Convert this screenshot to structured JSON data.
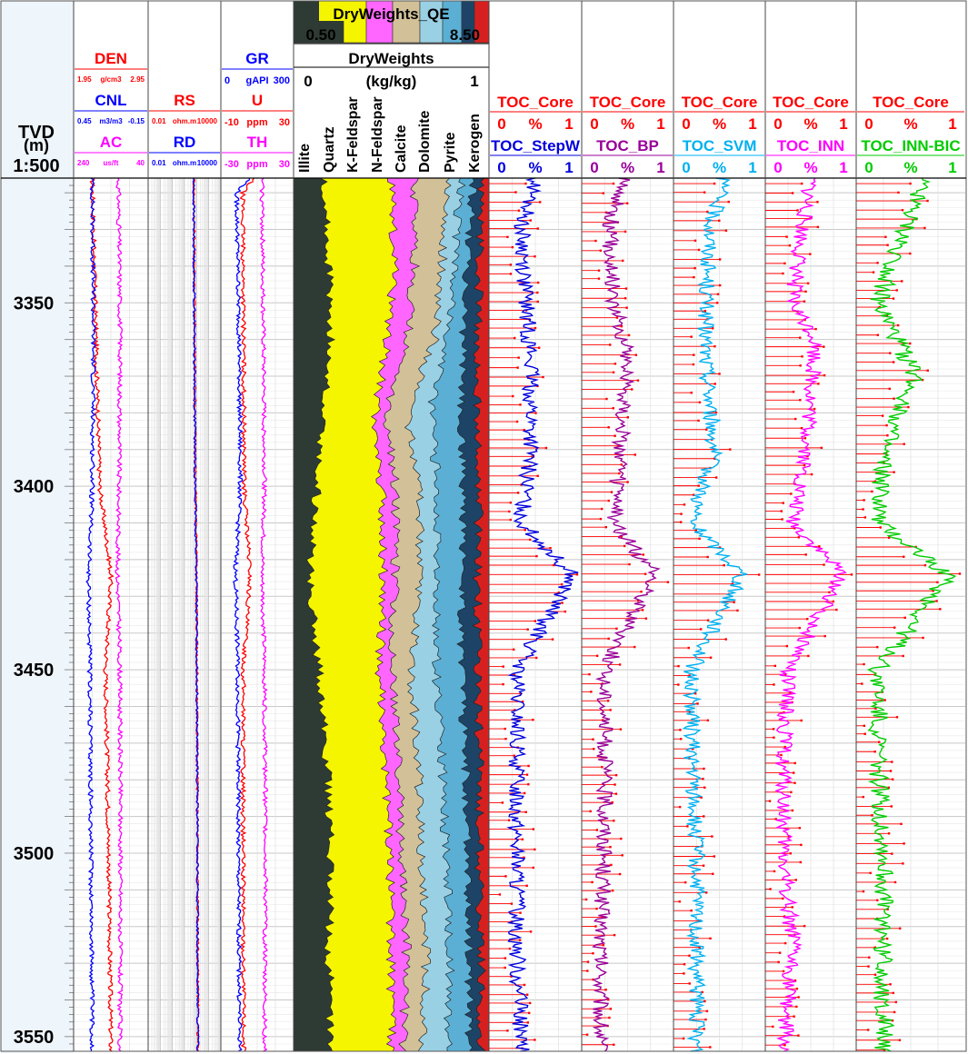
{
  "chart_data": {
    "type": "line",
    "depth": {
      "header": [
        "TVD",
        "(m)",
        "1:500"
      ],
      "ticks": [
        3350,
        3400,
        3450,
        3500,
        3550
      ],
      "range": [
        3316,
        3554
      ]
    },
    "tracks": [
      {
        "id": "t1",
        "headers": [
          {
            "name": "DEN",
            "unit": "g/cm3",
            "min": "1.95",
            "max": "2.95",
            "color": "#ff0000"
          },
          {
            "name": "CNL",
            "unit": "m3/m3",
            "min": "0.45",
            "max": "-0.15",
            "color": "#0000ff"
          },
          {
            "name": "AC",
            "unit": "us/ft",
            "min": "240",
            "max": "40",
            "color": "#ff00ff"
          }
        ],
        "curves": [
          {
            "name": "DEN",
            "color": "#ff0000",
            "range": [
              1.95,
              2.95
            ],
            "d": [
              3316,
              3360,
              3400,
              3424,
              3450,
              3500,
              3554
            ],
            "v": [
              2.2,
              2.25,
              2.3,
              2.45,
              2.38,
              2.42,
              2.45
            ]
          },
          {
            "name": "CNL",
            "color": "#0000ff",
            "range": [
              0.45,
              -0.15
            ],
            "d": [
              3316,
              3360,
              3400,
              3424,
              3450,
              3500,
              3554
            ],
            "v": [
              0.3,
              0.29,
              0.3,
              0.33,
              0.32,
              0.31,
              0.3
            ]
          },
          {
            "name": "AC",
            "color": "#ff00ff",
            "range": [
              240,
              40
            ],
            "d": [
              3316,
              3360,
              3400,
              3424,
              3450,
              3500,
              3554
            ],
            "v": [
              120,
              115,
              118,
              122,
              116,
              114,
              116
            ]
          }
        ]
      },
      {
        "id": "t2",
        "headers": [
          {
            "name": "RS",
            "unit": "ohm.m",
            "min": "0.01",
            "max": "10000",
            "color": "#ff0000"
          },
          {
            "name": "RD",
            "unit": "ohm.m",
            "min": "0.01",
            "max": "10000",
            "color": "#0000ff"
          }
        ],
        "curves": [
          {
            "name": "RS",
            "color": "#ff0000",
            "range": [
              0.01,
              10000
            ],
            "log": true,
            "d": [
              3316,
              3360,
              3400,
              3424,
              3450,
              3500,
              3554
            ],
            "v": [
              60,
              70,
              80,
              100,
              110,
              120,
              130
            ]
          },
          {
            "name": "RD",
            "color": "#0000ff",
            "range": [
              0.01,
              10000
            ],
            "log": true,
            "d": [
              3316,
              3360,
              3400,
              3424,
              3450,
              3500,
              3554
            ],
            "v": [
              55,
              65,
              75,
              95,
              105,
              115,
              125
            ]
          }
        ]
      },
      {
        "id": "t3",
        "headers": [
          {
            "name": "GR",
            "unit": "gAPI",
            "min": "0",
            "max": "300",
            "color": "#0000ff"
          },
          {
            "name": "U",
            "unit": "ppm",
            "min": "-10",
            "max": "30",
            "color": "#ff0000"
          },
          {
            "name": "TH",
            "unit": "ppm",
            "min": "-30",
            "max": "30",
            "color": "#ff00ff"
          }
        ],
        "curves": [
          {
            "name": "GR",
            "color": "#0000ff",
            "range": [
              0,
              300
            ],
            "d": [
              3316,
              3320,
              3360,
              3400,
              3424,
              3450,
              3500,
              3554
            ],
            "v": [
              120,
              65,
              75,
              80,
              60,
              70,
              72,
              78
            ]
          },
          {
            "name": "U",
            "color": "#ff0000",
            "range": [
              -10,
              30
            ],
            "d": [
              3316,
              3320,
              3360,
              3400,
              3424,
              3450,
              3500,
              3554
            ],
            "v": [
              8,
              2,
              2.5,
              2.8,
              6,
              2.4,
              2.2,
              2.6
            ]
          },
          {
            "name": "TH",
            "color": "#ff00ff",
            "range": [
              -30,
              30
            ],
            "d": [
              3316,
              3360,
              3400,
              3424,
              3450,
              3500,
              3554
            ],
            "v": [
              4,
              5,
              6,
              4,
              6,
              7,
              6
            ]
          }
        ]
      },
      {
        "id": "t4",
        "title": "DryWeights_QE",
        "scale_left": "0.50",
        "scale_right": "8.50",
        "subtitle": "DryWeights",
        "unit": "(kg/kg)",
        "min": "0",
        "max": "1",
        "labels": [
          "Illite",
          "Quartz",
          "K-Feldspar",
          "N-Feldspar",
          "Calcite",
          "Dolomite",
          "Pyrite",
          "Kerogen"
        ],
        "colors": [
          "#2e3b34",
          "#f5f500",
          "#ff66ff",
          "#d2c198",
          "#9ad0e4",
          "#5bafd4",
          "#1d4466",
          "#d62020"
        ],
        "depths": [
          3316,
          3340,
          3360,
          3380,
          3400,
          3424,
          3450,
          3475,
          3500,
          3525,
          3554
        ],
        "cumulative": {
          "Illite": [
            0.15,
            0.18,
            0.19,
            0.15,
            0.12,
            0.08,
            0.13,
            0.17,
            0.19,
            0.18,
            0.19
          ],
          "Quartz": [
            0.5,
            0.52,
            0.48,
            0.42,
            0.45,
            0.46,
            0.44,
            0.47,
            0.49,
            0.5,
            0.5
          ],
          "K-Feldspar": [
            0.62,
            0.62,
            0.58,
            0.47,
            0.52,
            0.52,
            0.5,
            0.54,
            0.55,
            0.58,
            0.56
          ],
          "N-Feldspar": [
            0.8,
            0.76,
            0.72,
            0.58,
            0.64,
            0.65,
            0.6,
            0.64,
            0.65,
            0.68,
            0.66
          ],
          "Calcite": [
            0.86,
            0.82,
            0.79,
            0.7,
            0.74,
            0.74,
            0.73,
            0.76,
            0.78,
            0.8,
            0.79
          ],
          "Dolomite": [
            0.92,
            0.89,
            0.87,
            0.86,
            0.87,
            0.86,
            0.86,
            0.88,
            0.89,
            0.9,
            0.9
          ],
          "Pyrite": [
            0.96,
            0.95,
            0.94,
            0.94,
            0.95,
            0.94,
            0.94,
            0.95,
            0.95,
            0.96,
            0.96
          ],
          "Kerogen": [
            1,
            1,
            1,
            1,
            1,
            1,
            1,
            1,
            1,
            1,
            1
          ]
        }
      },
      {
        "id": "t5",
        "core": {
          "name": "TOC_Core",
          "unit": "%",
          "min": "0",
          "max": "1",
          "color": "#ff0000"
        },
        "model": {
          "name": "TOC_StepW",
          "unit": "%",
          "min": "0",
          "max": "1",
          "color": "#0000dd"
        },
        "curve": {
          "d": [
            3316,
            3330,
            3350,
            3365,
            3390,
            3410,
            3424,
            3450,
            3475,
            3500,
            3525,
            3554
          ],
          "v": [
            0.5,
            0.35,
            0.4,
            0.45,
            0.45,
            0.35,
            0.9,
            0.3,
            0.3,
            0.3,
            0.3,
            0.35
          ]
        }
      },
      {
        "id": "t6",
        "core": {
          "name": "TOC_Core",
          "unit": "%",
          "min": "0",
          "max": "1",
          "color": "#ff0000"
        },
        "model": {
          "name": "TOC_BP",
          "unit": "%",
          "min": "0",
          "max": "1",
          "color": "#990099"
        },
        "curve": {
          "d": [
            3316,
            3330,
            3350,
            3365,
            3390,
            3410,
            3424,
            3450,
            3475,
            3500,
            3525,
            3554
          ],
          "v": [
            0.45,
            0.3,
            0.35,
            0.5,
            0.42,
            0.35,
            0.8,
            0.25,
            0.25,
            0.25,
            0.2,
            0.2
          ]
        }
      },
      {
        "id": "t7",
        "core": {
          "name": "TOC_Core",
          "unit": "%",
          "min": "0",
          "max": "1",
          "color": "#ff0000"
        },
        "model": {
          "name": "TOC_SVM",
          "unit": "%",
          "min": "0",
          "max": "1",
          "color": "#00b0f0"
        },
        "curve": {
          "d": [
            3316,
            3330,
            3350,
            3365,
            3390,
            3410,
            3424,
            3450,
            3475,
            3500,
            3525,
            3554
          ],
          "v": [
            0.55,
            0.4,
            0.35,
            0.35,
            0.45,
            0.2,
            0.75,
            0.2,
            0.2,
            0.25,
            0.25,
            0.25
          ]
        }
      },
      {
        "id": "t8",
        "core": {
          "name": "TOC_Core",
          "unit": "%",
          "min": "0",
          "max": "1",
          "color": "#ff0000"
        },
        "model": {
          "name": "TOC_INN",
          "unit": "%",
          "min": "0",
          "max": "1",
          "color": "#ff00ff"
        },
        "curve": {
          "d": [
            3316,
            3330,
            3350,
            3360,
            3390,
            3410,
            3424,
            3450,
            3475,
            3500,
            3525,
            3554
          ],
          "v": [
            0.5,
            0.4,
            0.3,
            0.55,
            0.45,
            0.3,
            0.85,
            0.25,
            0.2,
            0.2,
            0.3,
            0.2
          ]
        }
      },
      {
        "id": "t9",
        "core": {
          "name": "TOC_Core",
          "unit": "%",
          "min": "0",
          "max": "1",
          "color": "#ff0000"
        },
        "model": {
          "name": "TOC_INN-BIC",
          "unit": "%",
          "min": "0",
          "max": "1",
          "color": "#00cc00"
        },
        "curve": {
          "d": [
            3316,
            3330,
            3350,
            3370,
            3390,
            3410,
            3424,
            3450,
            3475,
            3500,
            3525,
            3554
          ],
          "v": [
            0.6,
            0.45,
            0.2,
            0.55,
            0.25,
            0.2,
            0.85,
            0.2,
            0.2,
            0.25,
            0.25,
            0.25
          ]
        }
      }
    ]
  }
}
